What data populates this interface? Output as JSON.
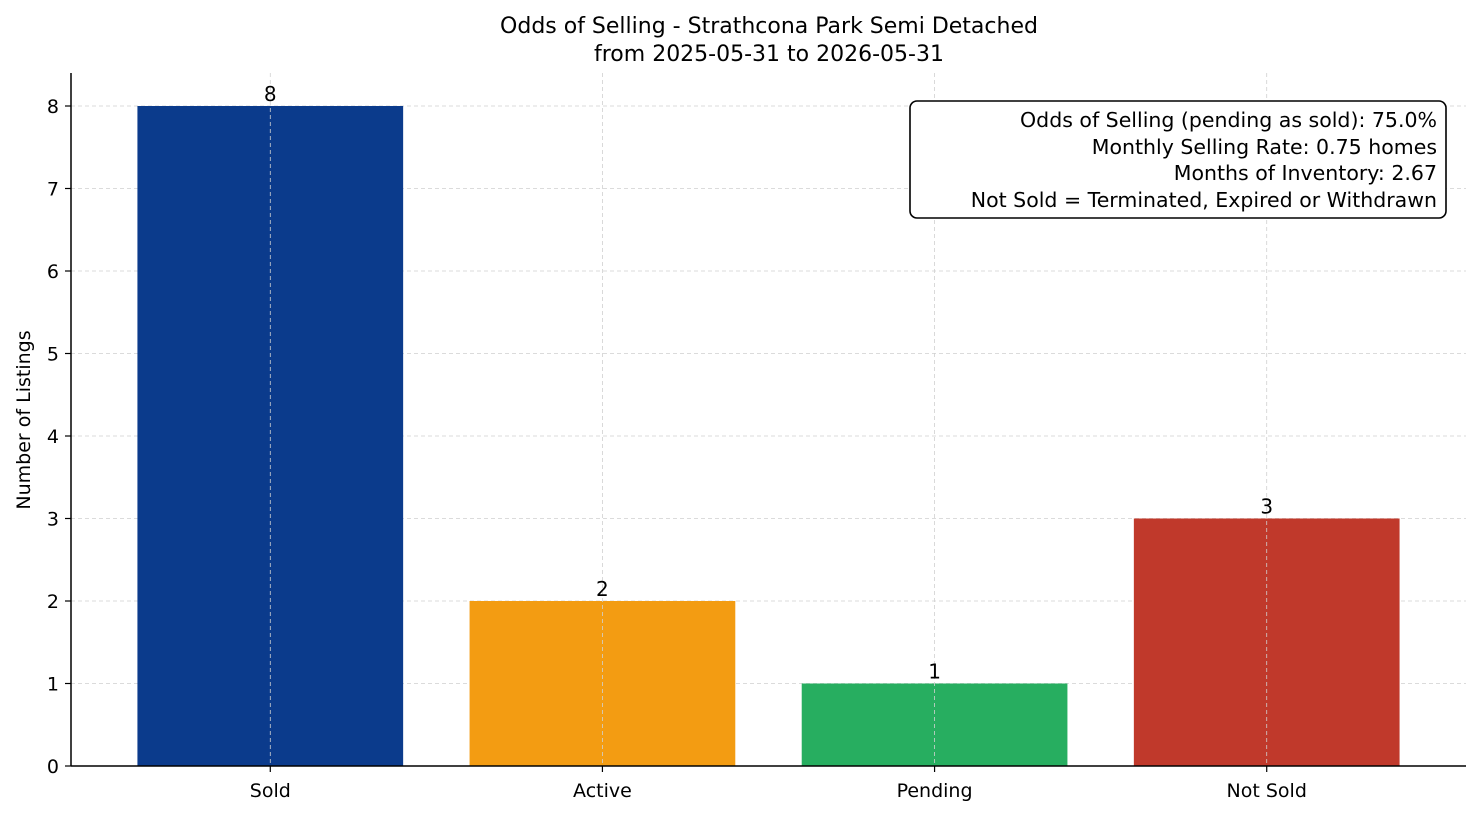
{
  "chart_data": {
    "type": "bar",
    "title": "Odds of Selling - Strathcona Park Semi Detached",
    "subtitle": "from 2025-05-31 to 2026-05-31",
    "xlabel": "",
    "ylabel": "Number of Listings",
    "categories": [
      "Sold",
      "Active",
      "Pending",
      "Not Sold"
    ],
    "values": [
      8,
      2,
      1,
      3
    ],
    "value_labels": [
      "8",
      "2",
      "1",
      "3"
    ],
    "colors": [
      "#0b3b8c",
      "#f39c12",
      "#27ae60",
      "#c0392b"
    ],
    "ylim": [
      0,
      8.4
    ],
    "yticks": [
      0,
      1,
      2,
      3,
      4,
      5,
      6,
      7,
      8
    ],
    "grid": true,
    "info_box_position": "top-right",
    "info_box_lines": [
      "Odds of Selling (pending as sold): 75.0%",
      "Monthly Selling Rate: 0.75 homes",
      "Months of Inventory: 2.67",
      "Not Sold = Terminated, Expired or Withdrawn"
    ]
  }
}
